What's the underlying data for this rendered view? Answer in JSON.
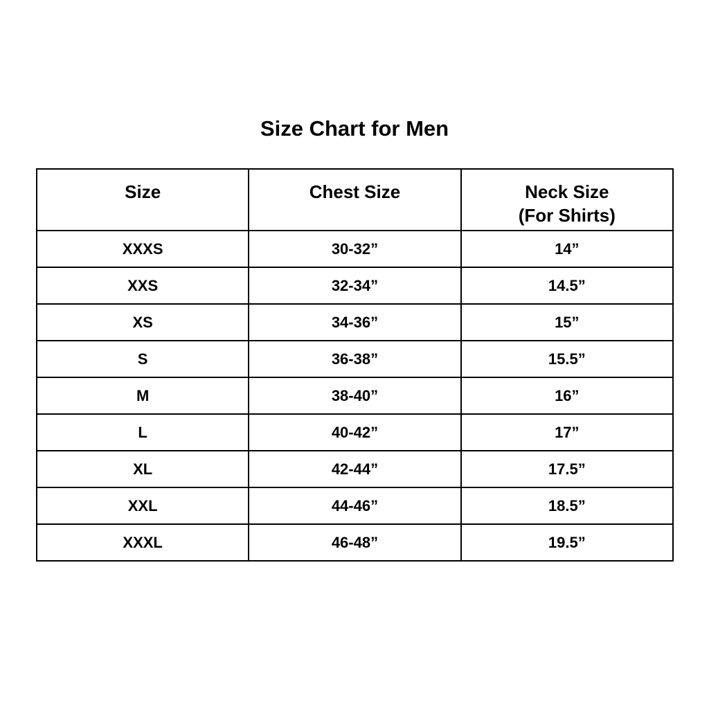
{
  "title": "Size Chart for Men",
  "columns": [
    "Size",
    "Chest Size",
    "Neck Size",
    "(For Shirts)"
  ],
  "rows": [
    [
      "XXXS",
      "30-32”",
      "14”"
    ],
    [
      "XXS",
      "32-34”",
      "14.5”"
    ],
    [
      "XS",
      "34-36”",
      "15”"
    ],
    [
      "S",
      "36-38”",
      "15.5”"
    ],
    [
      "M",
      "38-40”",
      "16”"
    ],
    [
      "L",
      "40-42”",
      "17”"
    ],
    [
      "XL",
      "42-44”",
      "17.5”"
    ],
    [
      "XXL",
      "44-46”",
      "18.5”"
    ],
    [
      "XXXL",
      "46-48”",
      "19.5”"
    ]
  ]
}
